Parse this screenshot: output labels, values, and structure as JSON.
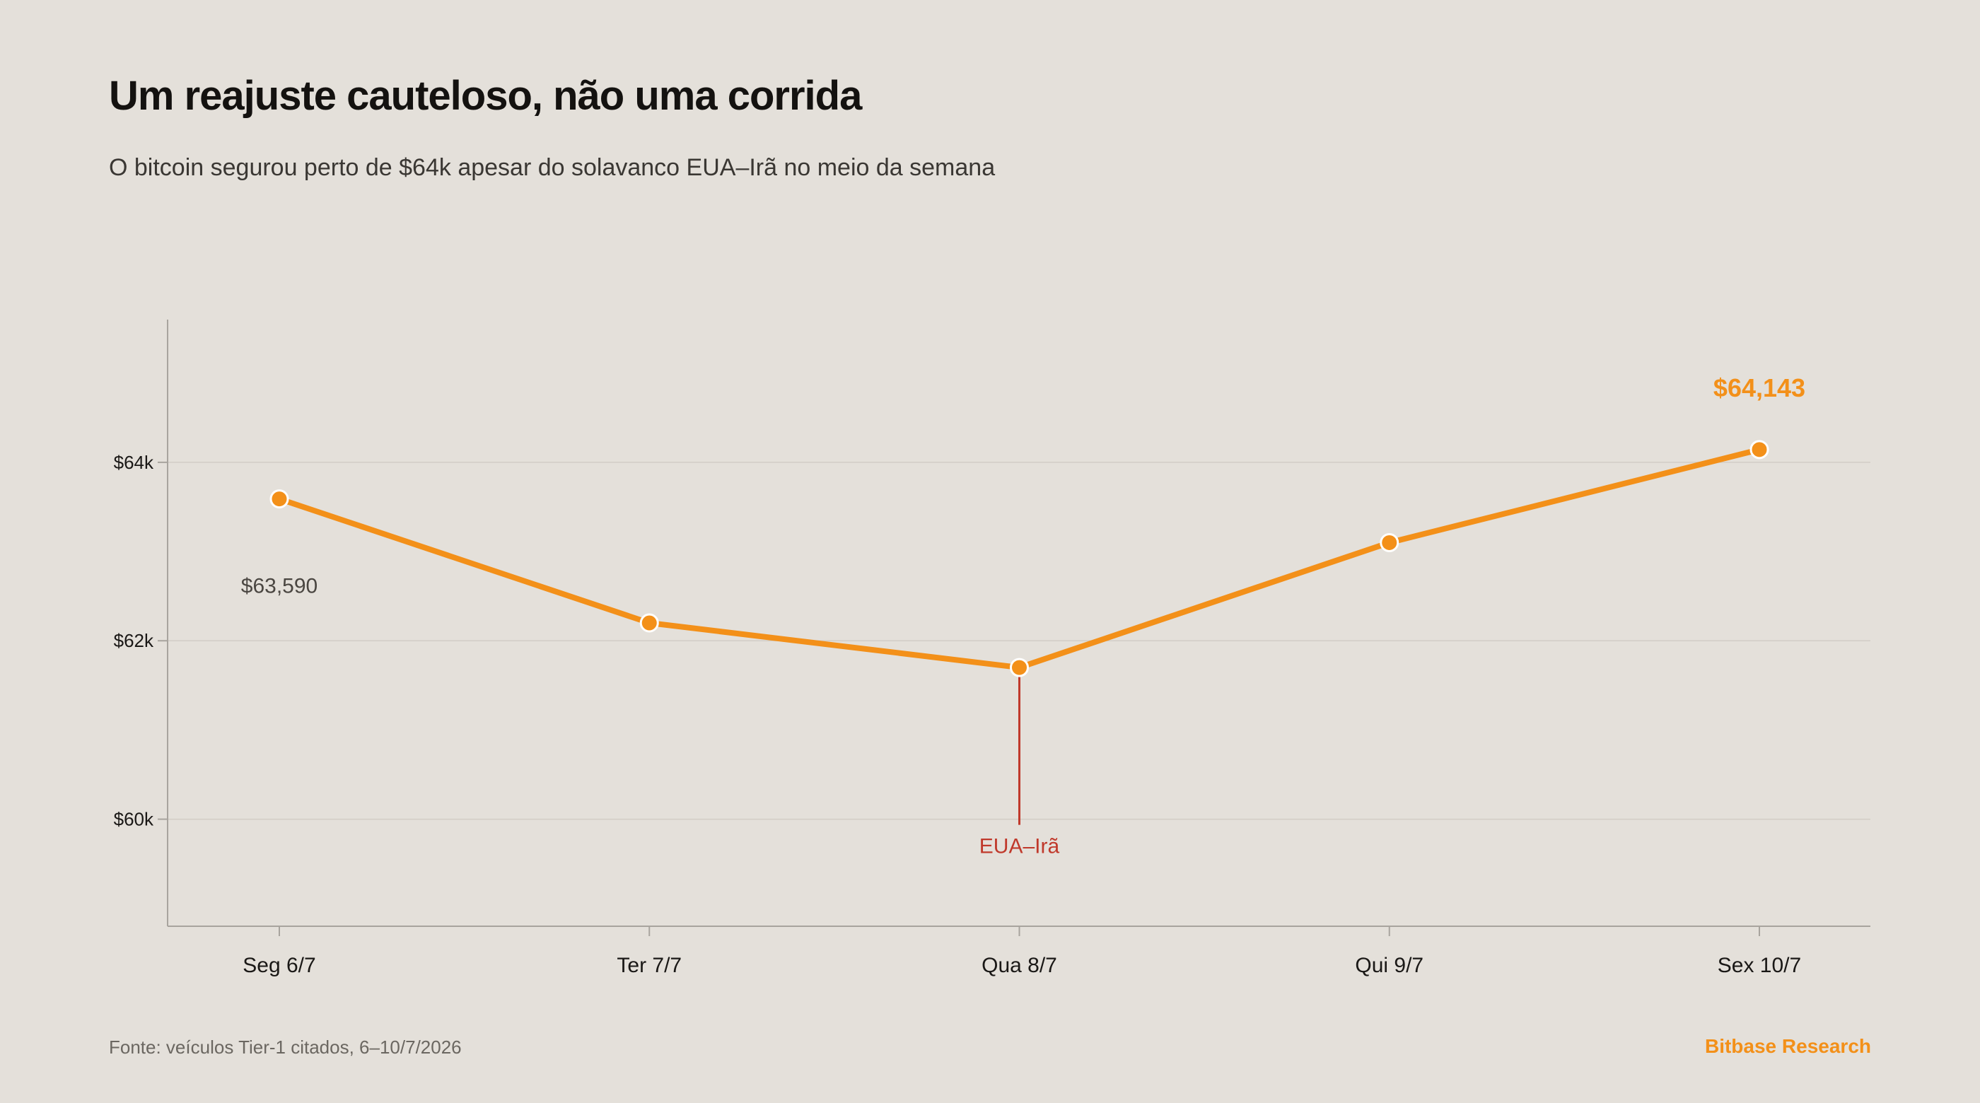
{
  "header": {
    "title": "Um reajuste cauteloso, não uma corrida",
    "subtitle": "O bitcoin segurou perto de $64k apesar do solavanco EUA–Irã no meio da semana"
  },
  "footer": {
    "source": "Fonte: veículos Tier-1 citados, 6–10/7/2026",
    "brand": "Bitbase Research"
  },
  "colors": {
    "background": "#e4e0da",
    "series": "#f39019",
    "event": "#c0392b",
    "grid": "#d2cdc6",
    "axis": "#a8a49e"
  },
  "chart_data": {
    "type": "line",
    "categories": [
      "Seg 6/7",
      "Ter 7/7",
      "Qua 8/7",
      "Qui 9/7",
      "Sex 10/7"
    ],
    "series": [
      {
        "values": [
          63590,
          62200,
          61700,
          63100,
          64143
        ]
      }
    ],
    "ylim": [
      58800,
      65600
    ],
    "yticks": [
      60000,
      62000,
      64000
    ],
    "ytick_labels": [
      "$60k",
      "$62k",
      "$64k"
    ],
    "grid": true,
    "legend": "none",
    "annotations": {
      "start_label": "$63,590",
      "end_label": "$64,143",
      "event": {
        "category_index": 2,
        "label": "EUA–Irã",
        "y": 60000
      }
    }
  }
}
